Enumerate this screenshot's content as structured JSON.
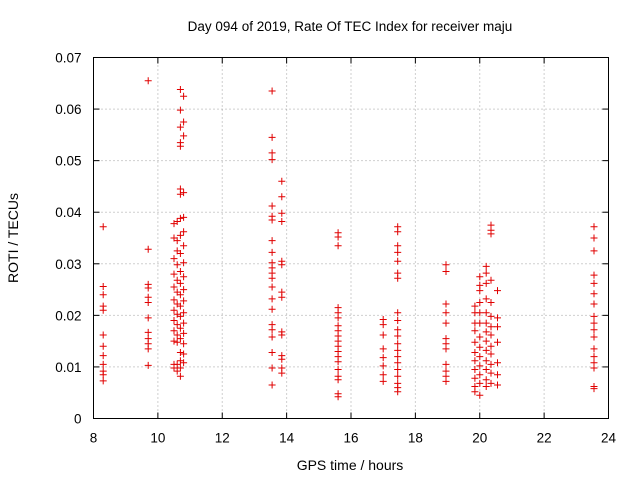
{
  "chart_data": {
    "type": "scatter",
    "title": "Day 094 of 2019, Rate Of TEC Index for receiver maju",
    "xlabel": "GPS time / hours",
    "ylabel": "ROTI / TECUs",
    "xlim": [
      8,
      24
    ],
    "ylim": [
      0,
      0.07
    ],
    "xticks": [
      8,
      10,
      12,
      14,
      16,
      18,
      20,
      22,
      24
    ],
    "xtick_labels": [
      "8",
      "10",
      "12",
      "14",
      "16",
      "18",
      "20",
      "22",
      "24"
    ],
    "yticks": [
      0,
      0.01,
      0.02,
      0.03,
      0.04,
      0.05,
      0.06,
      0.07
    ],
    "ytick_labels": [
      "0",
      "0.01",
      "0.02",
      "0.03",
      "0.04",
      "0.05",
      "0.06",
      "0.07"
    ],
    "grid": true,
    "marker": "+",
    "color": "#e00000",
    "series": [
      {
        "name": "ROTI",
        "points": [
          [
            8.3,
            0.0372
          ],
          [
            8.3,
            0.0256
          ],
          [
            8.3,
            0.024
          ],
          [
            8.3,
            0.0218
          ],
          [
            8.3,
            0.021
          ],
          [
            8.3,
            0.0162
          ],
          [
            8.3,
            0.014
          ],
          [
            8.3,
            0.0122
          ],
          [
            8.3,
            0.0105
          ],
          [
            8.3,
            0.0092
          ],
          [
            8.3,
            0.0085
          ],
          [
            8.3,
            0.0073
          ],
          [
            9.7,
            0.0655
          ],
          [
            9.7,
            0.0328
          ],
          [
            9.7,
            0.026
          ],
          [
            9.7,
            0.0253
          ],
          [
            9.7,
            0.0235
          ],
          [
            9.7,
            0.0225
          ],
          [
            9.7,
            0.0195
          ],
          [
            9.7,
            0.0167
          ],
          [
            9.7,
            0.0155
          ],
          [
            9.7,
            0.0145
          ],
          [
            9.7,
            0.0135
          ],
          [
            9.7,
            0.0103
          ],
          [
            10.5,
            0.0378
          ],
          [
            10.5,
            0.035
          ],
          [
            10.5,
            0.031
          ],
          [
            10.5,
            0.028
          ],
          [
            10.5,
            0.0255
          ],
          [
            10.5,
            0.023
          ],
          [
            10.5,
            0.021
          ],
          [
            10.5,
            0.019
          ],
          [
            10.5,
            0.017
          ],
          [
            10.5,
            0.015
          ],
          [
            10.5,
            0.0105
          ],
          [
            10.5,
            0.0098
          ],
          [
            10.6,
            0.0382
          ],
          [
            10.6,
            0.0345
          ],
          [
            10.6,
            0.0325
          ],
          [
            10.6,
            0.0298
          ],
          [
            10.6,
            0.0268
          ],
          [
            10.6,
            0.0245
          ],
          [
            10.6,
            0.0222
          ],
          [
            10.6,
            0.0202
          ],
          [
            10.6,
            0.0182
          ],
          [
            10.6,
            0.0162
          ],
          [
            10.6,
            0.0148
          ],
          [
            10.6,
            0.0105
          ],
          [
            10.6,
            0.0092
          ],
          [
            10.7,
            0.0638
          ],
          [
            10.7,
            0.0598
          ],
          [
            10.7,
            0.0565
          ],
          [
            10.7,
            0.0535
          ],
          [
            10.7,
            0.0528
          ],
          [
            10.7,
            0.0445
          ],
          [
            10.7,
            0.0435
          ],
          [
            10.7,
            0.0388
          ],
          [
            10.7,
            0.0355
          ],
          [
            10.7,
            0.032
          ],
          [
            10.7,
            0.0285
          ],
          [
            10.7,
            0.0262
          ],
          [
            10.7,
            0.024
          ],
          [
            10.7,
            0.0218
          ],
          [
            10.7,
            0.0198
          ],
          [
            10.7,
            0.0175
          ],
          [
            10.7,
            0.0155
          ],
          [
            10.7,
            0.0128
          ],
          [
            10.7,
            0.0112
          ],
          [
            10.7,
            0.0098
          ],
          [
            10.7,
            0.0082
          ],
          [
            10.8,
            0.0625
          ],
          [
            10.8,
            0.0575
          ],
          [
            10.8,
            0.0548
          ],
          [
            10.8,
            0.0438
          ],
          [
            10.8,
            0.039
          ],
          [
            10.8,
            0.0362
          ],
          [
            10.8,
            0.0335
          ],
          [
            10.8,
            0.0302
          ],
          [
            10.8,
            0.0275
          ],
          [
            10.8,
            0.025
          ],
          [
            10.8,
            0.0228
          ],
          [
            10.8,
            0.0205
          ],
          [
            10.8,
            0.0185
          ],
          [
            10.8,
            0.0165
          ],
          [
            10.8,
            0.0145
          ],
          [
            10.8,
            0.0125
          ],
          [
            10.8,
            0.0108
          ],
          [
            13.55,
            0.0635
          ],
          [
            13.55,
            0.0545
          ],
          [
            13.55,
            0.0515
          ],
          [
            13.55,
            0.0502
          ],
          [
            13.55,
            0.0412
          ],
          [
            13.55,
            0.0392
          ],
          [
            13.55,
            0.0385
          ],
          [
            13.55,
            0.0345
          ],
          [
            13.55,
            0.0322
          ],
          [
            13.55,
            0.0302
          ],
          [
            13.55,
            0.0292
          ],
          [
            13.55,
            0.0282
          ],
          [
            13.55,
            0.0272
          ],
          [
            13.55,
            0.0255
          ],
          [
            13.55,
            0.0232
          ],
          [
            13.55,
            0.0212
          ],
          [
            13.55,
            0.0182
          ],
          [
            13.55,
            0.0172
          ],
          [
            13.55,
            0.0158
          ],
          [
            13.55,
            0.0128
          ],
          [
            13.55,
            0.0098
          ],
          [
            13.55,
            0.0065
          ],
          [
            13.85,
            0.046
          ],
          [
            13.85,
            0.043
          ],
          [
            13.85,
            0.0398
          ],
          [
            13.85,
            0.0382
          ],
          [
            13.85,
            0.0305
          ],
          [
            13.85,
            0.0298
          ],
          [
            13.85,
            0.0245
          ],
          [
            13.85,
            0.0235
          ],
          [
            13.85,
            0.0168
          ],
          [
            13.85,
            0.0162
          ],
          [
            13.85,
            0.0122
          ],
          [
            13.85,
            0.0115
          ],
          [
            13.85,
            0.0098
          ],
          [
            13.85,
            0.0088
          ],
          [
            15.6,
            0.036
          ],
          [
            15.6,
            0.0352
          ],
          [
            15.6,
            0.0335
          ],
          [
            15.6,
            0.0215
          ],
          [
            15.6,
            0.0205
          ],
          [
            15.6,
            0.0195
          ],
          [
            15.6,
            0.018
          ],
          [
            15.6,
            0.017
          ],
          [
            15.6,
            0.016
          ],
          [
            15.6,
            0.015
          ],
          [
            15.6,
            0.014
          ],
          [
            15.6,
            0.013
          ],
          [
            15.6,
            0.012
          ],
          [
            15.6,
            0.011
          ],
          [
            15.6,
            0.0095
          ],
          [
            15.6,
            0.0082
          ],
          [
            15.6,
            0.0075
          ],
          [
            15.6,
            0.0048
          ],
          [
            15.6,
            0.0042
          ],
          [
            17.0,
            0.0192
          ],
          [
            17.0,
            0.0182
          ],
          [
            17.0,
            0.0162
          ],
          [
            17.0,
            0.0135
          ],
          [
            17.0,
            0.0118
          ],
          [
            17.0,
            0.0102
          ],
          [
            17.0,
            0.0085
          ],
          [
            17.0,
            0.0072
          ],
          [
            17.45,
            0.0372
          ],
          [
            17.45,
            0.0362
          ],
          [
            17.45,
            0.0335
          ],
          [
            17.45,
            0.0322
          ],
          [
            17.45,
            0.0305
          ],
          [
            17.45,
            0.0282
          ],
          [
            17.45,
            0.0272
          ],
          [
            17.45,
            0.0205
          ],
          [
            17.45,
            0.019
          ],
          [
            17.45,
            0.0172
          ],
          [
            17.45,
            0.016
          ],
          [
            17.45,
            0.0145
          ],
          [
            17.45,
            0.0132
          ],
          [
            17.45,
            0.012
          ],
          [
            17.45,
            0.0108
          ],
          [
            17.45,
            0.0095
          ],
          [
            17.45,
            0.0082
          ],
          [
            17.45,
            0.0068
          ],
          [
            17.45,
            0.006
          ],
          [
            17.45,
            0.0052
          ],
          [
            18.95,
            0.0298
          ],
          [
            18.95,
            0.0285
          ],
          [
            18.95,
            0.0222
          ],
          [
            18.95,
            0.0205
          ],
          [
            18.95,
            0.0185
          ],
          [
            18.95,
            0.0155
          ],
          [
            18.95,
            0.0145
          ],
          [
            18.95,
            0.0135
          ],
          [
            18.95,
            0.0105
          ],
          [
            18.95,
            0.0092
          ],
          [
            18.95,
            0.0082
          ],
          [
            18.95,
            0.0072
          ],
          [
            19.85,
            0.0218
          ],
          [
            19.85,
            0.0205
          ],
          [
            19.85,
            0.0185
          ],
          [
            19.85,
            0.017
          ],
          [
            19.85,
            0.0148
          ],
          [
            19.85,
            0.0128
          ],
          [
            19.85,
            0.0112
          ],
          [
            19.85,
            0.0095
          ],
          [
            19.85,
            0.0078
          ],
          [
            19.85,
            0.0062
          ],
          [
            19.85,
            0.0052
          ],
          [
            20.0,
            0.0275
          ],
          [
            20.0,
            0.0258
          ],
          [
            20.0,
            0.0248
          ],
          [
            20.0,
            0.0225
          ],
          [
            20.0,
            0.0205
          ],
          [
            20.0,
            0.0185
          ],
          [
            20.0,
            0.0158
          ],
          [
            20.0,
            0.0138
          ],
          [
            20.0,
            0.012
          ],
          [
            20.0,
            0.0102
          ],
          [
            20.0,
            0.0085
          ],
          [
            20.0,
            0.0068
          ],
          [
            20.0,
            0.0045
          ],
          [
            20.2,
            0.0295
          ],
          [
            20.2,
            0.0282
          ],
          [
            20.2,
            0.0262
          ],
          [
            20.2,
            0.0232
          ],
          [
            20.2,
            0.0205
          ],
          [
            20.2,
            0.0185
          ],
          [
            20.2,
            0.0168
          ],
          [
            20.2,
            0.015
          ],
          [
            20.2,
            0.0132
          ],
          [
            20.2,
            0.0112
          ],
          [
            20.2,
            0.0095
          ],
          [
            20.2,
            0.0075
          ],
          [
            20.2,
            0.0062
          ],
          [
            20.35,
            0.0375
          ],
          [
            20.35,
            0.0365
          ],
          [
            20.35,
            0.0358
          ],
          [
            20.35,
            0.0268
          ],
          [
            20.35,
            0.0225
          ],
          [
            20.35,
            0.0198
          ],
          [
            20.35,
            0.0178
          ],
          [
            20.35,
            0.0162
          ],
          [
            20.35,
            0.014
          ],
          [
            20.35,
            0.0125
          ],
          [
            20.35,
            0.0105
          ],
          [
            20.35,
            0.0088
          ],
          [
            20.35,
            0.0068
          ],
          [
            20.55,
            0.0248
          ],
          [
            20.55,
            0.0195
          ],
          [
            20.55,
            0.0178
          ],
          [
            20.55,
            0.0148
          ],
          [
            20.55,
            0.0108
          ],
          [
            20.55,
            0.0085
          ],
          [
            20.55,
            0.0065
          ],
          [
            23.55,
            0.0372
          ],
          [
            23.55,
            0.035
          ],
          [
            23.55,
            0.0325
          ],
          [
            23.55,
            0.0278
          ],
          [
            23.55,
            0.0262
          ],
          [
            23.55,
            0.0242
          ],
          [
            23.55,
            0.0222
          ],
          [
            23.55,
            0.0198
          ],
          [
            23.55,
            0.0185
          ],
          [
            23.55,
            0.0172
          ],
          [
            23.55,
            0.0158
          ],
          [
            23.55,
            0.0135
          ],
          [
            23.55,
            0.012
          ],
          [
            23.55,
            0.0108
          ],
          [
            23.55,
            0.0098
          ],
          [
            23.55,
            0.0062
          ],
          [
            23.55,
            0.0058
          ]
        ]
      }
    ]
  }
}
